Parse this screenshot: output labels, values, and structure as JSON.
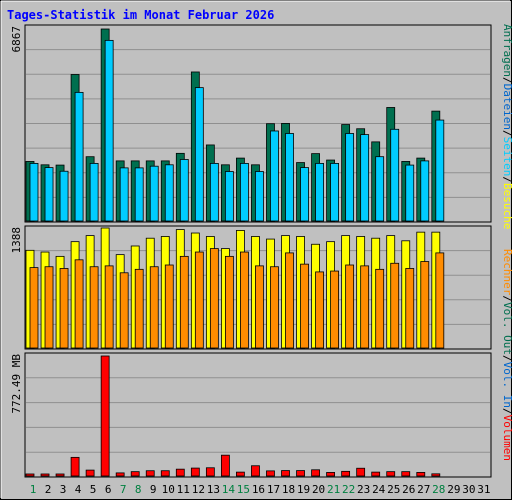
{
  "chart_data": [
    {
      "type": "bar",
      "title": "Tages-Statistik im Monat Februar 2026",
      "panel": "top",
      "y_max_label": "6867",
      "ylim": [
        0,
        6867
      ],
      "categories": [
        "1",
        "2",
        "3",
        "4",
        "5",
        "6",
        "7",
        "8",
        "9",
        "10",
        "11",
        "12",
        "13",
        "14",
        "15",
        "16",
        "17",
        "18",
        "19",
        "20",
        "21",
        "22",
        "23",
        "24",
        "25",
        "26",
        "27",
        "28",
        "29",
        "30",
        "31"
      ],
      "weekend_days": [
        "1",
        "7",
        "8",
        "14",
        "15",
        "21",
        "22",
        "28"
      ],
      "series": [
        {
          "name": "Anfragen",
          "color": "#006f4f",
          "values": [
            2130,
            2010,
            2000,
            5240,
            2300,
            6867,
            2150,
            2150,
            2150,
            2150,
            2420,
            5330,
            2720,
            2010,
            2250,
            2010,
            3480,
            3490,
            2090,
            2410,
            2180,
            3450,
            3300,
            2830,
            4060,
            2130,
            2250,
            3930,
            0,
            0,
            0
          ]
        },
        {
          "name": "Dateien",
          "color": "#0066cc",
          "values": [
            0,
            0,
            0,
            0,
            0,
            5760,
            0,
            0,
            0,
            0,
            0,
            0,
            0,
            0,
            0,
            0,
            0,
            0,
            0,
            0,
            0,
            0,
            0,
            0,
            0,
            0,
            0,
            0,
            0,
            0,
            0
          ]
        },
        {
          "name": "Seiten",
          "color": "#00ccff",
          "values": [
            2060,
            1910,
            1780,
            4600,
            2060,
            6460,
            1900,
            1900,
            1960,
            2010,
            2200,
            4770,
            2060,
            1770,
            2060,
            1770,
            3220,
            3130,
            1910,
            2060,
            2060,
            3130,
            3090,
            2300,
            3280,
            2000,
            2150,
            3610,
            0,
            0,
            0
          ]
        }
      ],
      "legend": [
        "Anfragen",
        "/",
        "Dateien",
        "/",
        "Seiten",
        "/",
        "Besuche"
      ]
    },
    {
      "type": "bar",
      "panel": "middle",
      "y_max_label": "1388",
      "ylim": [
        0,
        1388
      ],
      "series": [
        {
          "name": "Besuche",
          "color": "#ffff00",
          "values": [
            1130,
            1110,
            1060,
            1230,
            1300,
            1388,
            1080,
            1180,
            1270,
            1290,
            1370,
            1330,
            1290,
            1150,
            1360,
            1290,
            1260,
            1300,
            1290,
            1200,
            1230,
            1300,
            1290,
            1270,
            1300,
            1240,
            1340,
            1340,
            0,
            0,
            0
          ]
        },
        {
          "name": "Rechner",
          "color": "#ff8c00",
          "values": [
            930,
            940,
            920,
            1020,
            940,
            950,
            870,
            910,
            940,
            960,
            1060,
            1110,
            1150,
            1060,
            1110,
            950,
            940,
            1100,
            970,
            880,
            890,
            960,
            950,
            910,
            980,
            920,
            1000,
            1100,
            0,
            0,
            0
          ]
        }
      ],
      "legend": [
        "Rechner",
        "/",
        "Vol. Out",
        "/",
        "Vol. In",
        "/",
        "Volumen"
      ]
    },
    {
      "type": "bar",
      "panel": "bottom",
      "y_max_label": "772.49 MB",
      "ylim": [
        0,
        772.49
      ],
      "series": [
        {
          "name": "Volumen",
          "color": "#ff0000",
          "values": [
            13,
            13,
            13,
            120,
            38,
            772.49,
            20,
            28,
            34,
            34,
            44,
            51,
            53,
            134,
            25,
            66,
            33,
            35,
            35,
            40,
            23,
            30,
            50,
            25,
            28,
            28,
            23,
            14,
            0,
            0,
            0
          ]
        }
      ]
    }
  ]
}
